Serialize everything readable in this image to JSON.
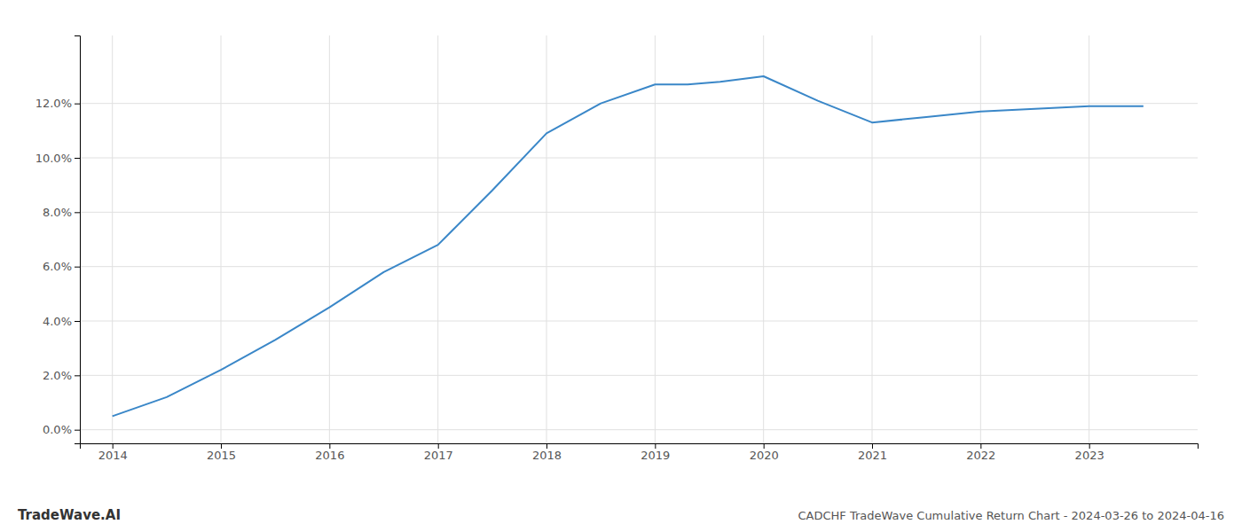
{
  "chart_data": {
    "type": "line",
    "title": "CADCHF TradeWave Cumulative Return Chart - 2024-03-26 to 2024-04-16",
    "annotations": [
      "TradeWave.AI"
    ],
    "x": [
      2014,
      2014.5,
      2015,
      2015.5,
      2016,
      2016.5,
      2017,
      2017.5,
      2018,
      2018.5,
      2019,
      2019.3,
      2019.6,
      2020,
      2020.5,
      2021,
      2021.5,
      2022,
      2022.5,
      2023,
      2023.5
    ],
    "values": [
      0.005,
      0.012,
      0.022,
      0.033,
      0.045,
      0.058,
      0.068,
      0.088,
      0.109,
      0.12,
      0.127,
      0.127,
      0.128,
      0.13,
      0.121,
      0.113,
      0.115,
      0.117,
      0.118,
      0.119,
      0.119
    ],
    "color": "#3a87c8",
    "xlim": [
      2013.7,
      2024.0
    ],
    "xticks": [
      2014,
      2015,
      2016,
      2017,
      2018,
      2019,
      2020,
      2021,
      2022,
      2023
    ],
    "ylim": [
      -0.005,
      0.145
    ],
    "yticks": [
      {
        "value": 0.0,
        "label": "0.0%"
      },
      {
        "value": 0.02,
        "label": "2.0%"
      },
      {
        "value": 0.04,
        "label": "4.0%"
      },
      {
        "value": 0.06,
        "label": "6.0%"
      },
      {
        "value": 0.08,
        "label": "8.0%"
      },
      {
        "value": 0.1,
        "label": "10.0%"
      },
      {
        "value": 0.12,
        "label": "12.0%"
      }
    ],
    "grid": true
  }
}
